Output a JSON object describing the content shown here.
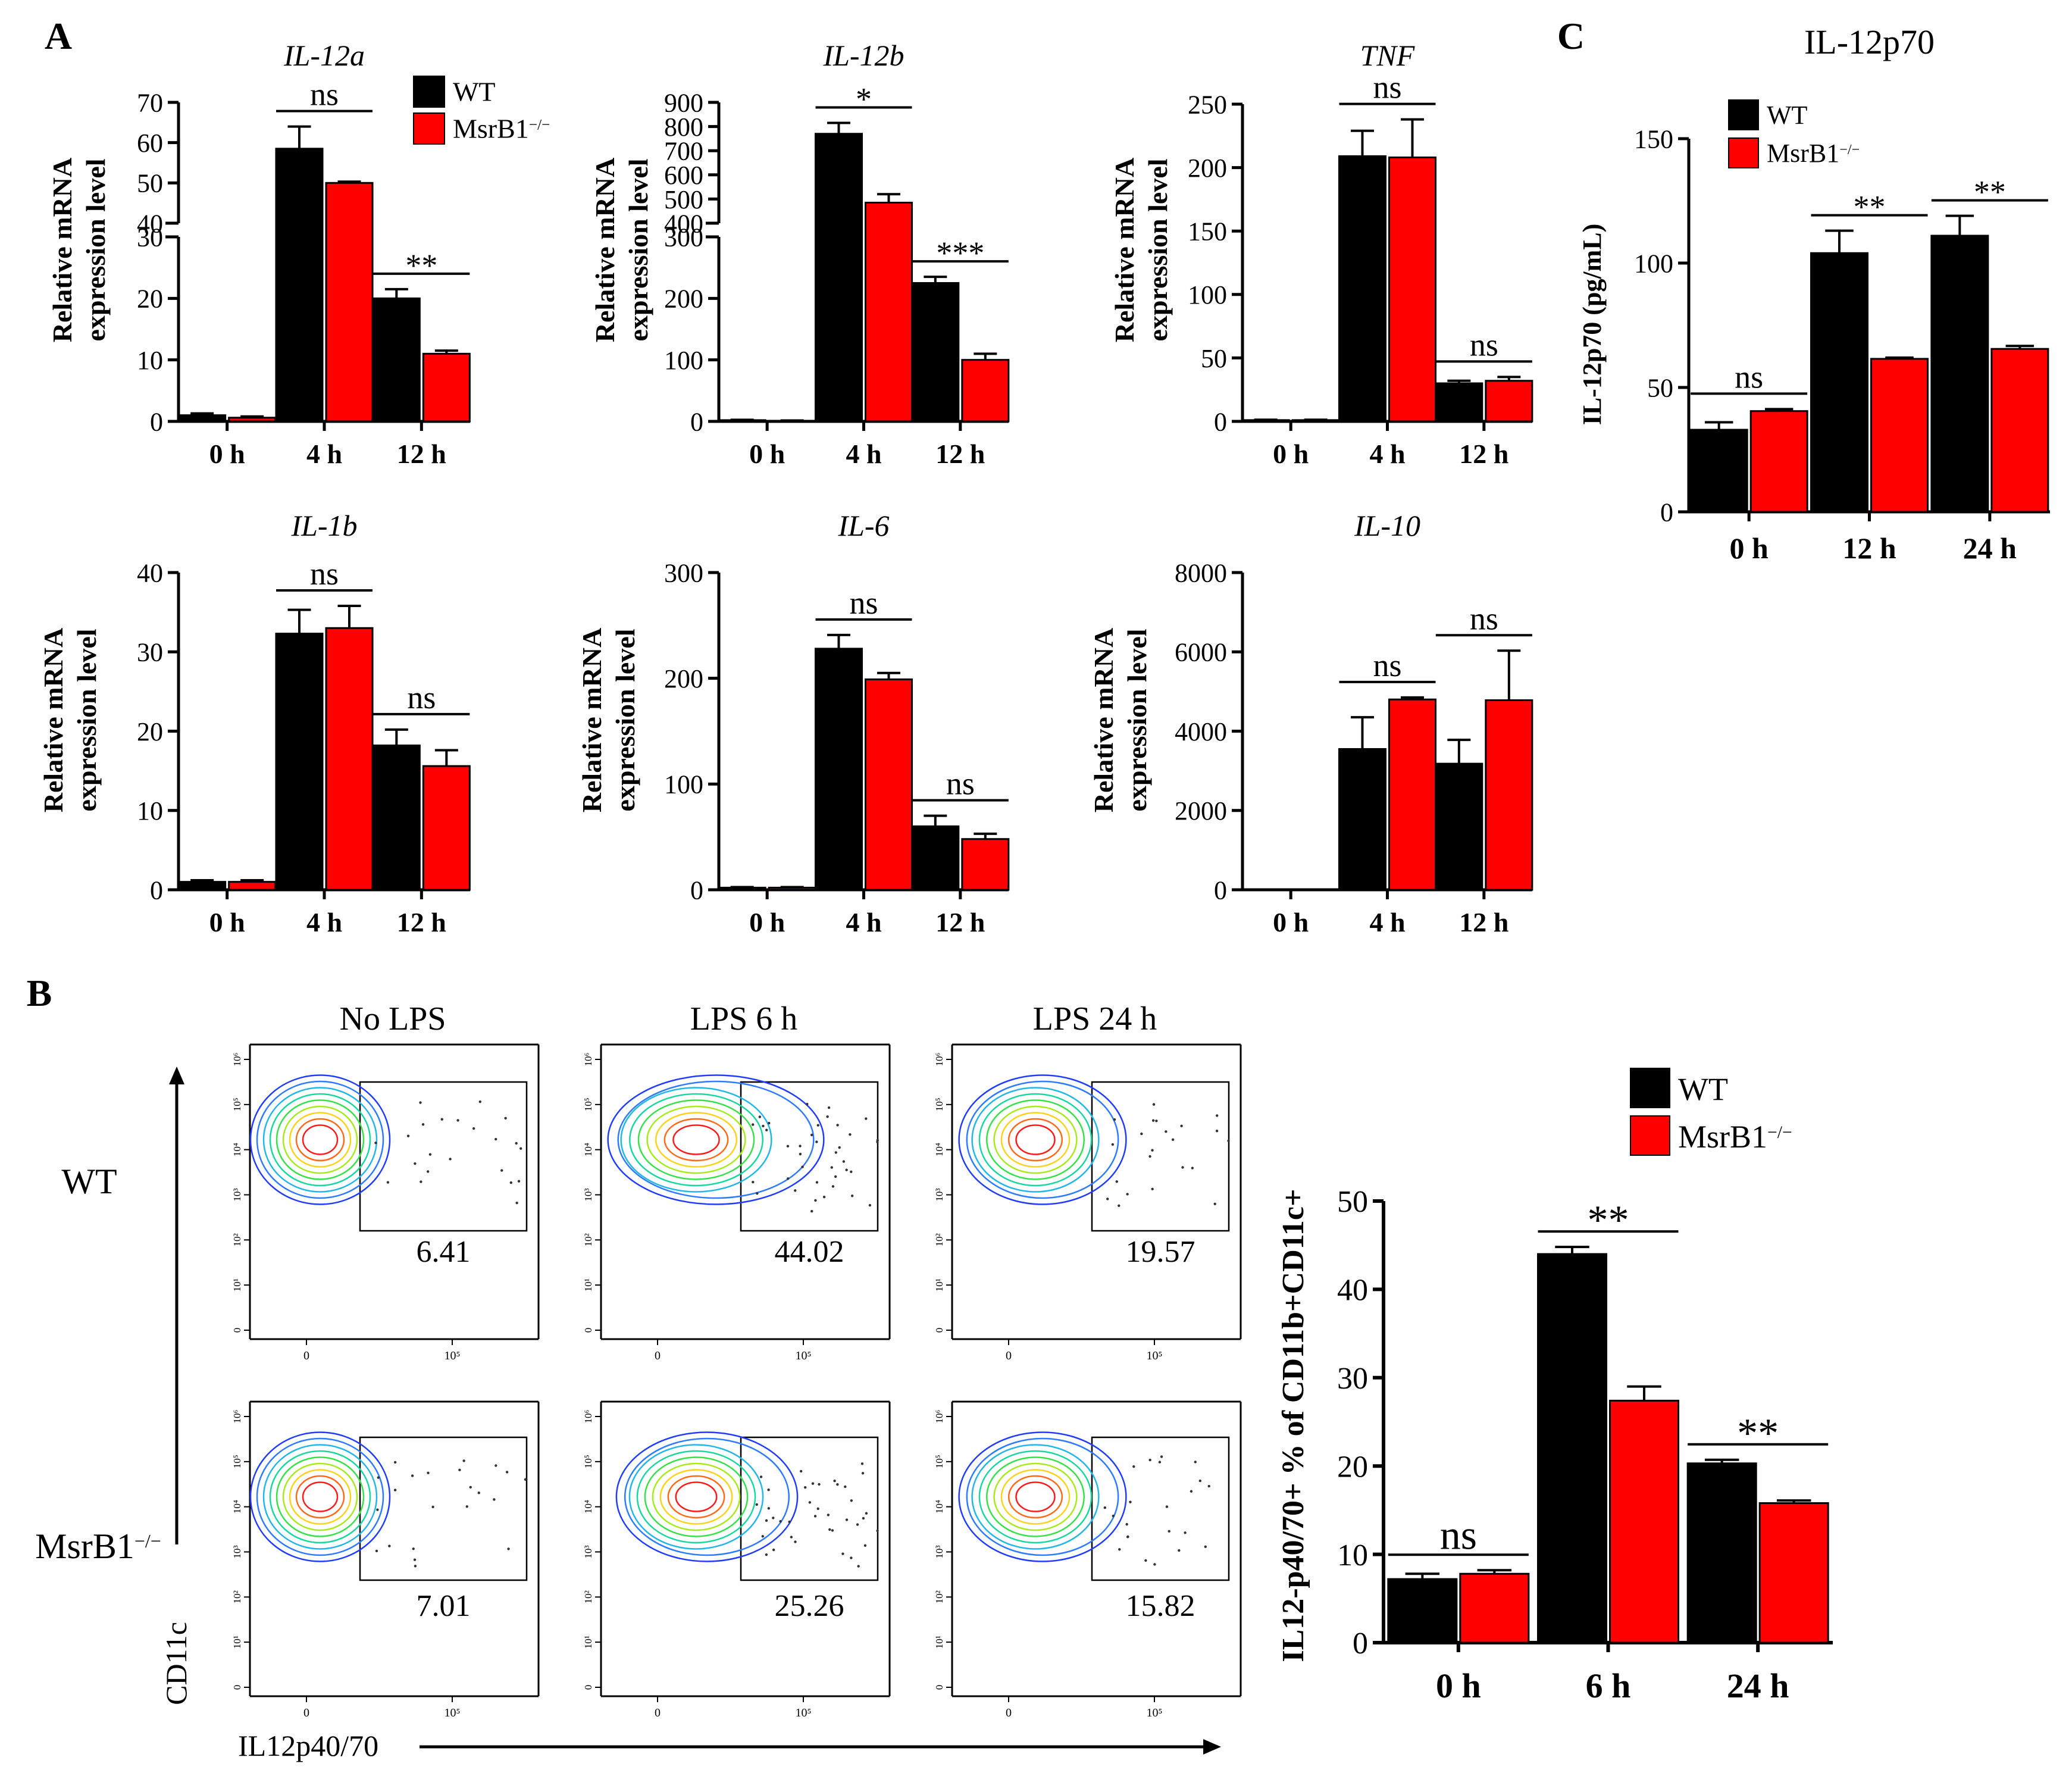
{
  "colors": {
    "wt": "#000000",
    "ko": "#ff0000",
    "axis": "#000000"
  },
  "panels": {
    "A": "A",
    "B": "B",
    "C": "C"
  },
  "legend_wt": "WT",
  "legend_ko": "MsrB1",
  "legend_ko_sup": "−/−",
  "ylabel_rel_1": "Relative mRNA",
  "ylabel_rel_2": "expression level",
  "chart_data": [
    {
      "id": "il12a",
      "type": "bar",
      "title": "IL-12a",
      "italic": true,
      "categories": [
        "0 h",
        "4 h",
        "12 h"
      ],
      "series": [
        {
          "name": "WT",
          "values": [
            1,
            58.5,
            20
          ],
          "errors": [
            0.3,
            5.5,
            1.5
          ]
        },
        {
          "name": "MsrB1−/−",
          "values": [
            0.6,
            50,
            11
          ],
          "errors": [
            0.2,
            0.3,
            0.5
          ]
        }
      ],
      "broken_axis": {
        "lower": [
          0,
          30
        ],
        "upper": [
          40,
          70
        ]
      },
      "yticks_lower": [
        0,
        10,
        20,
        30
      ],
      "yticks_upper": [
        40,
        50,
        60,
        70
      ],
      "sig": [
        "",
        "ns",
        "**"
      ]
    },
    {
      "id": "il12b",
      "type": "bar",
      "title": "IL-12b",
      "italic": true,
      "categories": [
        "0 h",
        "4 h",
        "12 h"
      ],
      "series": [
        {
          "name": "WT",
          "values": [
            2,
            770,
            225
          ],
          "errors": [
            0.5,
            45,
            10
          ]
        },
        {
          "name": "MsrB1−/−",
          "values": [
            1,
            485,
            100
          ],
          "errors": [
            0.5,
            35,
            10
          ]
        }
      ],
      "broken_axis": {
        "lower": [
          0,
          300
        ],
        "upper": [
          400,
          900
        ]
      },
      "yticks_lower": [
        0,
        100,
        200,
        300
      ],
      "yticks_upper": [
        400,
        500,
        600,
        700,
        800,
        900
      ],
      "sig": [
        "",
        "*",
        "***"
      ]
    },
    {
      "id": "tnf",
      "type": "bar",
      "title": "TNF",
      "italic": true,
      "categories": [
        "0 h",
        "4 h",
        "12 h"
      ],
      "series": [
        {
          "name": "WT",
          "values": [
            1,
            209,
            30
          ],
          "errors": [
            0.3,
            20,
            2
          ]
        },
        {
          "name": "MsrB1−/−",
          "values": [
            1,
            208,
            32
          ],
          "errors": [
            0.3,
            30,
            3
          ]
        }
      ],
      "ylim": [
        0,
        250
      ],
      "yticks": [
        0,
        50,
        100,
        150,
        200,
        250
      ],
      "sig": [
        "",
        "ns",
        "ns"
      ]
    },
    {
      "id": "il1b",
      "type": "bar",
      "title": "IL-1b",
      "italic": true,
      "categories": [
        "0 h",
        "4 h",
        "12 h"
      ],
      "series": [
        {
          "name": "WT",
          "values": [
            1,
            32.3,
            18.2
          ],
          "errors": [
            0.2,
            3,
            2
          ]
        },
        {
          "name": "MsrB1−/−",
          "values": [
            1,
            33,
            15.6
          ],
          "errors": [
            0.2,
            2.8,
            2
          ]
        }
      ],
      "ylim": [
        0,
        40
      ],
      "yticks": [
        0,
        10,
        20,
        30,
        40
      ],
      "sig": [
        "",
        "ns",
        "ns"
      ]
    },
    {
      "id": "il6",
      "type": "bar",
      "title": "IL-6",
      "italic": true,
      "categories": [
        "0 h",
        "4 h",
        "12 h"
      ],
      "series": [
        {
          "name": "WT",
          "values": [
            2,
            228,
            60
          ],
          "errors": [
            0.5,
            13,
            10
          ]
        },
        {
          "name": "MsrB1−/−",
          "values": [
            2,
            199,
            48
          ],
          "errors": [
            0.5,
            6,
            5
          ]
        }
      ],
      "ylim": [
        0,
        300
      ],
      "yticks": [
        0,
        100,
        200,
        300
      ],
      "sig": [
        "",
        "ns",
        "ns"
      ]
    },
    {
      "id": "il10",
      "type": "bar",
      "title": "IL-10",
      "italic": true,
      "categories": [
        "0 h",
        "4 h",
        "12 h"
      ],
      "series": [
        {
          "name": "WT",
          "values": [
            0,
            3550,
            3180
          ],
          "errors": [
            0,
            800,
            600
          ]
        },
        {
          "name": "MsrB1−/−",
          "values": [
            0,
            4800,
            4780
          ],
          "errors": [
            0,
            50,
            1250
          ]
        }
      ],
      "ylim": [
        0,
        8000
      ],
      "yticks": [
        0,
        2000,
        4000,
        6000,
        8000
      ],
      "sig": [
        "",
        "ns",
        "ns"
      ]
    },
    {
      "id": "il12p70",
      "type": "bar",
      "title": "IL-12p70",
      "italic": false,
      "ylabel": "IL-12p70 (pg/mL)",
      "categories": [
        "0 h",
        "12 h",
        "24 h"
      ],
      "series": [
        {
          "name": "WT",
          "values": [
            33,
            104,
            111
          ],
          "errors": [
            3,
            9,
            8
          ]
        },
        {
          "name": "MsrB1−/−",
          "values": [
            40.5,
            61.5,
            65.5
          ],
          "errors": [
            0.8,
            0.5,
            1.2
          ]
        }
      ],
      "ylim": [
        0,
        150
      ],
      "yticks": [
        0,
        50,
        100,
        150
      ],
      "sig": [
        "ns",
        "**",
        "**"
      ]
    },
    {
      "id": "flow_pct",
      "type": "bar",
      "title": "",
      "ylabel": "IL12-p40/70+ % of CD11b+CD11c+",
      "categories": [
        "0 h",
        "6 h",
        "24 h"
      ],
      "series": [
        {
          "name": "WT",
          "values": [
            7.2,
            44,
            20.3
          ],
          "errors": [
            0.6,
            0.8,
            0.4
          ]
        },
        {
          "name": "MsrB1−/−",
          "values": [
            7.8,
            27.4,
            15.8
          ],
          "errors": [
            0.4,
            1.6,
            0.3
          ]
        }
      ],
      "ylim": [
        0,
        50
      ],
      "yticks": [
        0,
        10,
        20,
        30,
        40,
        50
      ],
      "sig": [
        "ns",
        "**",
        "**"
      ]
    }
  ],
  "flow": {
    "col_titles": [
      "No LPS",
      "LPS 6 h",
      "LPS 24 h"
    ],
    "row_labels": [
      "WT",
      "MsrB1"
    ],
    "row_label_sup": "−/−",
    "percents": [
      [
        "6.41",
        "44.02",
        "19.57"
      ],
      [
        "7.01",
        "25.26",
        "15.82"
      ]
    ],
    "xaxis_label": "IL12p40/70",
    "yaxis_label": "CD11c",
    "x_tick_labels": [
      "0",
      "10⁵"
    ],
    "y_tick_labels": [
      "0",
      "10¹",
      "10²",
      "10³",
      "10⁴",
      "10⁵",
      "10⁶"
    ]
  }
}
